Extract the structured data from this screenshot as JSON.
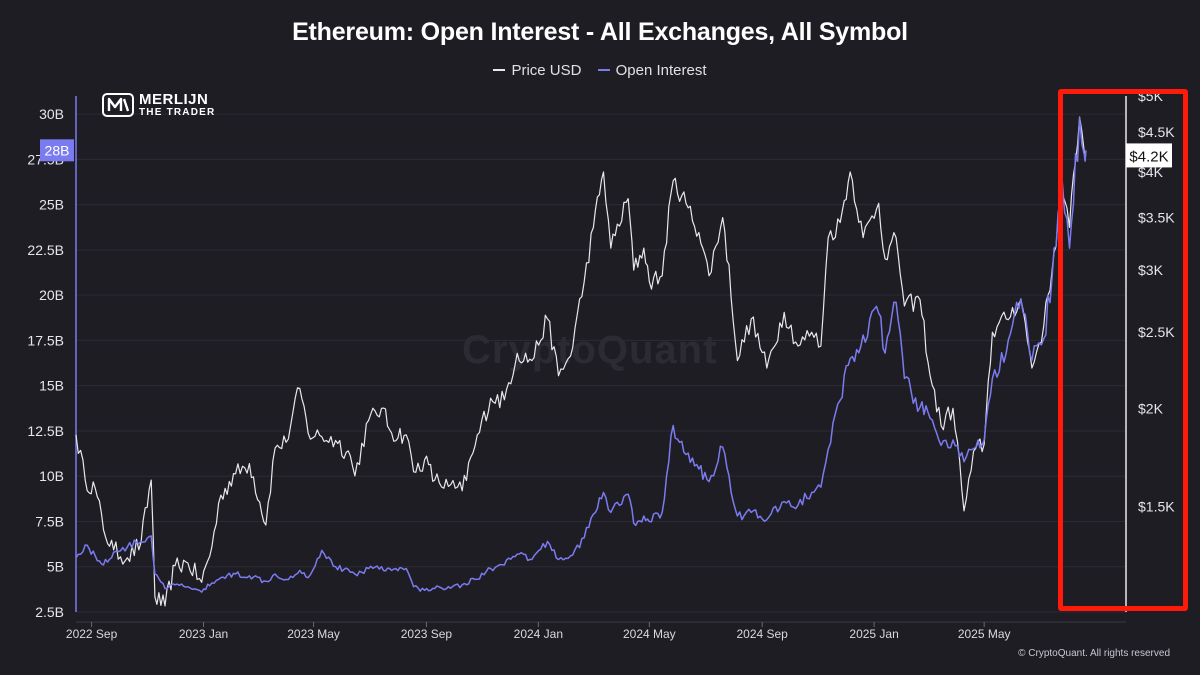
{
  "header": {
    "title": "Ethereum: Open Interest - All Exchanges, All Symbol"
  },
  "logo": {
    "line1": "MERLIJN",
    "line2": "THE TRADER"
  },
  "watermark": "CryptoQuant",
  "copyright": "© CryptoQuant. All rights reserved",
  "colors": {
    "price": "#e8e8ec",
    "oi": "#7b7bf0",
    "background": "#1e1d24",
    "highlight": "#ff1a0a"
  },
  "chart_data": {
    "type": "line",
    "legend": [
      {
        "name": "Price USD",
        "color": "#e8e8ec"
      },
      {
        "name": "Open Interest",
        "color": "#7b7bf0"
      }
    ],
    "x_ticks": [
      "2022 Sep",
      "2023 Jan",
      "2023 May",
      "2023 Sep",
      "2024 Jan",
      "2024 May",
      "2024 Sep",
      "2025 Jan",
      "2025 May"
    ],
    "x_range": [
      "2022-08-15",
      "2025-08-20"
    ],
    "y_left": {
      "ylim": [
        2.5,
        31
      ],
      "ticks": [
        2.5,
        5,
        7.5,
        10,
        12.5,
        15,
        17.5,
        20,
        22.5,
        25,
        27.5,
        30
      ],
      "tick_labels": [
        "2.5B",
        "5B",
        "7.5B",
        "10B",
        "12.5B",
        "15B",
        "17.5B",
        "20B",
        "22.5B",
        "25B",
        "27.5B",
        "30B"
      ],
      "current_label": "28B",
      "current_value": 28
    },
    "y_right": {
      "scale": "log",
      "ylim": [
        1100,
        5000
      ],
      "ticks": [
        1500,
        2000,
        2500,
        3000,
        3500,
        4000,
        4500,
        5000
      ],
      "tick_labels": [
        "$1.5K",
        "$2K",
        "$2.5K",
        "$3K",
        "$3.5K",
        "$4K",
        "$4.5K",
        "$5K"
      ],
      "current_label": "$4.2K",
      "current_value": 4200
    },
    "series": [
      {
        "name": "Price USD",
        "axis": "right",
        "points": [
          [
            "2022-08-15",
            1850
          ],
          [
            "2022-08-25",
            1620
          ],
          [
            "2022-09-05",
            1580
          ],
          [
            "2022-09-14",
            1400
          ],
          [
            "2022-09-25",
            1320
          ],
          [
            "2022-10-10",
            1290
          ],
          [
            "2022-10-25",
            1350
          ],
          [
            "2022-11-05",
            1620
          ],
          [
            "2022-11-09",
            1150
          ],
          [
            "2022-11-20",
            1120
          ],
          [
            "2022-12-01",
            1260
          ],
          [
            "2022-12-15",
            1270
          ],
          [
            "2022-12-30",
            1200
          ],
          [
            "2023-01-10",
            1330
          ],
          [
            "2023-01-20",
            1550
          ],
          [
            "2023-02-05",
            1650
          ],
          [
            "2023-02-20",
            1700
          ],
          [
            "2023-03-10",
            1420
          ],
          [
            "2023-03-20",
            1780
          ],
          [
            "2023-04-01",
            1810
          ],
          [
            "2023-04-16",
            2120
          ],
          [
            "2023-04-25",
            1860
          ],
          [
            "2023-05-10",
            1840
          ],
          [
            "2023-05-25",
            1820
          ],
          [
            "2023-06-10",
            1740
          ],
          [
            "2023-06-15",
            1640
          ],
          [
            "2023-06-30",
            1930
          ],
          [
            "2023-07-14",
            2000
          ],
          [
            "2023-07-25",
            1860
          ],
          [
            "2023-08-10",
            1850
          ],
          [
            "2023-08-18",
            1660
          ],
          [
            "2023-08-30",
            1720
          ],
          [
            "2023-09-10",
            1620
          ],
          [
            "2023-09-25",
            1590
          ],
          [
            "2023-10-10",
            1570
          ],
          [
            "2023-10-24",
            1790
          ],
          [
            "2023-11-10",
            2060
          ],
          [
            "2023-11-25",
            2050
          ],
          [
            "2023-12-09",
            2350
          ],
          [
            "2023-12-25",
            2300
          ],
          [
            "2024-01-11",
            2600
          ],
          [
            "2024-01-23",
            2200
          ],
          [
            "2024-02-05",
            2330
          ],
          [
            "2024-02-20",
            2900
          ],
          [
            "2024-03-01",
            3400
          ],
          [
            "2024-03-12",
            4000
          ],
          [
            "2024-03-20",
            3200
          ],
          [
            "2024-04-08",
            3700
          ],
          [
            "2024-04-14",
            3000
          ],
          [
            "2024-04-25",
            3200
          ],
          [
            "2024-05-01",
            2900
          ],
          [
            "2024-05-15",
            2950
          ],
          [
            "2024-05-27",
            3900
          ],
          [
            "2024-06-10",
            3650
          ],
          [
            "2024-06-24",
            3350
          ],
          [
            "2024-07-05",
            2950
          ],
          [
            "2024-07-20",
            3500
          ],
          [
            "2024-08-05",
            2300
          ],
          [
            "2024-08-20",
            2600
          ],
          [
            "2024-09-06",
            2250
          ],
          [
            "2024-09-25",
            2650
          ],
          [
            "2024-10-10",
            2400
          ],
          [
            "2024-10-25",
            2500
          ],
          [
            "2024-11-04",
            2400
          ],
          [
            "2024-11-12",
            3300
          ],
          [
            "2024-11-25",
            3450
          ],
          [
            "2024-12-06",
            4000
          ],
          [
            "2024-12-20",
            3300
          ],
          [
            "2025-01-06",
            3650
          ],
          [
            "2025-01-13",
            3100
          ],
          [
            "2025-01-25",
            3300
          ],
          [
            "2025-02-03",
            2700
          ],
          [
            "2025-02-20",
            2750
          ],
          [
            "2025-03-03",
            2200
          ],
          [
            "2025-03-15",
            1900
          ],
          [
            "2025-03-28",
            2000
          ],
          [
            "2025-04-09",
            1480
          ],
          [
            "2025-04-22",
            1780
          ],
          [
            "2025-05-01",
            1800
          ],
          [
            "2025-05-10",
            2500
          ],
          [
            "2025-05-25",
            2600
          ],
          [
            "2025-06-10",
            2750
          ],
          [
            "2025-06-22",
            2250
          ],
          [
            "2025-07-05",
            2550
          ],
          [
            "2025-07-14",
            3000
          ],
          [
            "2025-07-25",
            3750
          ],
          [
            "2025-08-02",
            3400
          ],
          [
            "2025-08-13",
            4700
          ],
          [
            "2025-08-18",
            4250
          ],
          [
            "2025-08-20",
            4200
          ]
        ]
      },
      {
        "name": "Open Interest",
        "axis": "left",
        "points": [
          [
            "2022-08-15",
            5.5
          ],
          [
            "2022-08-25",
            6.2
          ],
          [
            "2022-09-05",
            5.6
          ],
          [
            "2022-09-14",
            5.1
          ],
          [
            "2022-09-25",
            5.8
          ],
          [
            "2022-10-10",
            6.1
          ],
          [
            "2022-10-25",
            6.4
          ],
          [
            "2022-11-05",
            6.7
          ],
          [
            "2022-11-09",
            4.6
          ],
          [
            "2022-11-20",
            3.8
          ],
          [
            "2022-12-01",
            4.0
          ],
          [
            "2022-12-15",
            3.9
          ],
          [
            "2022-12-30",
            3.6
          ],
          [
            "2023-01-10",
            4.1
          ],
          [
            "2023-01-20",
            4.4
          ],
          [
            "2023-02-05",
            4.6
          ],
          [
            "2023-02-20",
            4.5
          ],
          [
            "2023-03-10",
            4.2
          ],
          [
            "2023-03-20",
            4.6
          ],
          [
            "2023-04-01",
            4.3
          ],
          [
            "2023-04-16",
            4.8
          ],
          [
            "2023-04-25",
            4.4
          ],
          [
            "2023-05-10",
            5.9
          ],
          [
            "2023-05-25",
            5.0
          ],
          [
            "2023-06-10",
            4.7
          ],
          [
            "2023-06-15",
            4.6
          ],
          [
            "2023-06-30",
            4.9
          ],
          [
            "2023-07-14",
            5.0
          ],
          [
            "2023-07-25",
            4.8
          ],
          [
            "2023-08-10",
            4.9
          ],
          [
            "2023-08-18",
            3.9
          ],
          [
            "2023-08-30",
            3.7
          ],
          [
            "2023-09-10",
            3.8
          ],
          [
            "2023-09-25",
            3.9
          ],
          [
            "2023-10-10",
            4.0
          ],
          [
            "2023-10-24",
            4.3
          ],
          [
            "2023-11-10",
            4.9
          ],
          [
            "2023-11-25",
            5.1
          ],
          [
            "2023-12-09",
            5.7
          ],
          [
            "2023-12-25",
            5.4
          ],
          [
            "2024-01-11",
            6.4
          ],
          [
            "2024-01-23",
            5.4
          ],
          [
            "2024-02-05",
            5.6
          ],
          [
            "2024-02-20",
            6.6
          ],
          [
            "2024-03-01",
            7.9
          ],
          [
            "2024-03-12",
            9.1
          ],
          [
            "2024-03-20",
            8.0
          ],
          [
            "2024-04-08",
            9.0
          ],
          [
            "2024-04-14",
            7.4
          ],
          [
            "2024-04-25",
            7.8
          ],
          [
            "2024-05-01",
            7.5
          ],
          [
            "2024-05-15",
            8.0
          ],
          [
            "2024-05-27",
            12.8
          ],
          [
            "2024-06-10",
            11.2
          ],
          [
            "2024-06-24",
            10.4
          ],
          [
            "2024-07-05",
            9.7
          ],
          [
            "2024-07-20",
            11.6
          ],
          [
            "2024-08-05",
            7.8
          ],
          [
            "2024-08-20",
            8.0
          ],
          [
            "2024-09-06",
            7.6
          ],
          [
            "2024-09-25",
            8.6
          ],
          [
            "2024-10-10",
            8.4
          ],
          [
            "2024-10-25",
            9.1
          ],
          [
            "2024-11-04",
            9.4
          ],
          [
            "2024-11-12",
            11.5
          ],
          [
            "2024-11-25",
            14.2
          ],
          [
            "2024-12-06",
            16.5
          ],
          [
            "2024-12-20",
            17.8
          ],
          [
            "2025-01-06",
            19.0
          ],
          [
            "2025-01-13",
            16.8
          ],
          [
            "2025-01-25",
            19.6
          ],
          [
            "2025-02-03",
            15.4
          ],
          [
            "2025-02-20",
            13.8
          ],
          [
            "2025-03-03",
            13.2
          ],
          [
            "2025-03-15",
            11.7
          ],
          [
            "2025-03-28",
            12.0
          ],
          [
            "2025-04-09",
            10.8
          ],
          [
            "2025-04-22",
            11.6
          ],
          [
            "2025-05-01",
            12.0
          ],
          [
            "2025-05-10",
            15.4
          ],
          [
            "2025-05-25",
            16.8
          ],
          [
            "2025-06-10",
            19.8
          ],
          [
            "2025-06-22",
            16.4
          ],
          [
            "2025-07-05",
            17.6
          ],
          [
            "2025-07-14",
            21.0
          ],
          [
            "2025-07-25",
            26.4
          ],
          [
            "2025-08-02",
            22.6
          ],
          [
            "2025-08-13",
            29.8
          ],
          [
            "2025-08-18",
            27.8
          ],
          [
            "2025-08-20",
            28.0
          ]
        ]
      }
    ]
  }
}
